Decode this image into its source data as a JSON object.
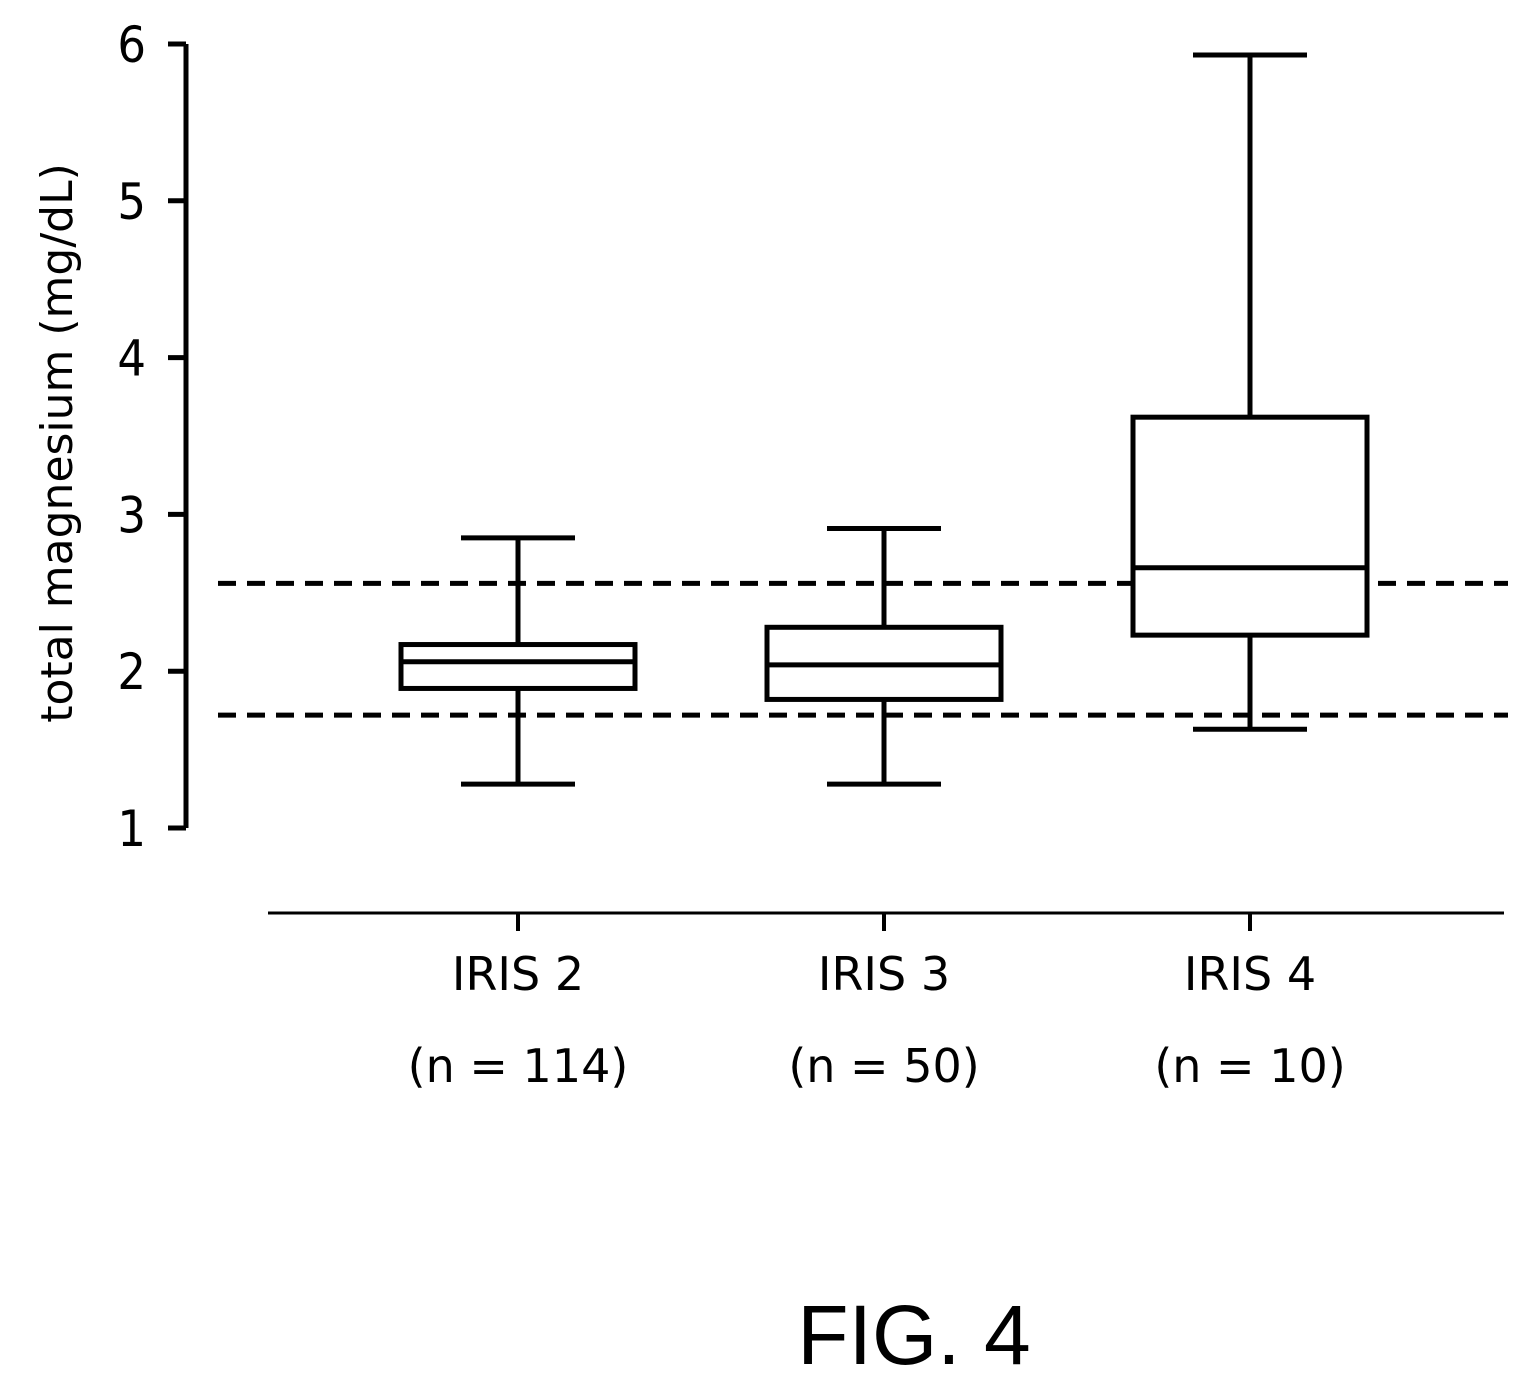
{
  "chart_data": {
    "type": "box",
    "title": "",
    "ylabel": "total magnesium (mg/dL)",
    "xlabel": "",
    "ylim": [
      1,
      6
    ],
    "yticks": [
      1,
      2,
      3,
      4,
      5,
      6
    ],
    "grid": false,
    "legend": "none",
    "reference_lines": [
      2.56,
      1.72
    ],
    "reference_line_style": "dashed",
    "categories": [
      {
        "label": "IRIS 2",
        "n_label": "(n = 114)"
      },
      {
        "label": "IRIS 3",
        "n_label": "(n = 50)"
      },
      {
        "label": "IRIS 4",
        "n_label": "(n = 10)"
      }
    ],
    "boxes": [
      {
        "whisker_low": 1.28,
        "q1": 1.89,
        "median": 2.06,
        "q3": 2.17,
        "whisker_high": 2.85
      },
      {
        "whisker_low": 1.28,
        "q1": 1.82,
        "median": 2.04,
        "q3": 2.28,
        "whisker_high": 2.91
      },
      {
        "whisker_low": 1.63,
        "q1": 2.23,
        "median": 2.66,
        "q3": 3.62,
        "whisker_high": 5.93
      }
    ],
    "caption": "FIG. 4"
  }
}
